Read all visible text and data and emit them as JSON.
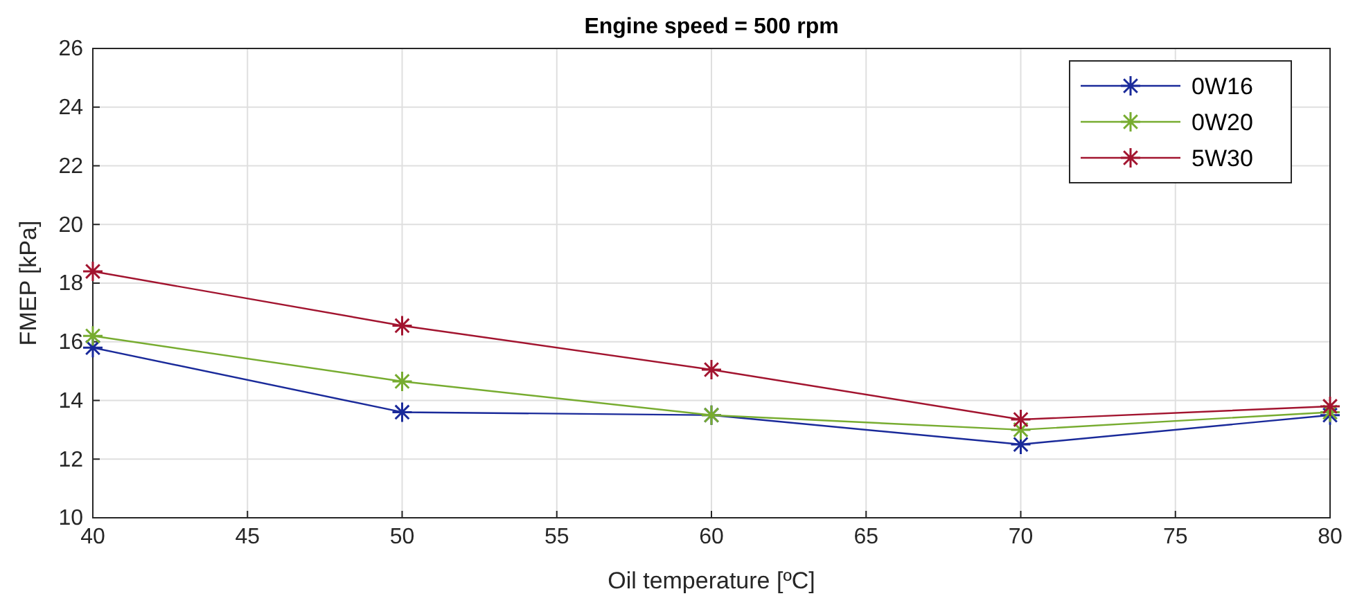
{
  "chart_data": {
    "type": "line",
    "title": "Engine speed = 500 rpm",
    "xlabel": "Oil temperature [ºC]",
    "ylabel": "FMEP [kPa]",
    "x": [
      40,
      50,
      60,
      70,
      80
    ],
    "series": [
      {
        "name": "0W16",
        "color": "#1a2a9a",
        "values": [
          15.8,
          13.6,
          13.5,
          12.5,
          13.5
        ]
      },
      {
        "name": "0W20",
        "color": "#77ac30",
        "values": [
          16.2,
          14.65,
          13.5,
          13.0,
          13.6
        ]
      },
      {
        "name": "5W30",
        "color": "#a2142f",
        "values": [
          18.4,
          16.55,
          15.05,
          13.35,
          13.8
        ]
      }
    ],
    "xlim": [
      40,
      80
    ],
    "xticks": [
      40,
      45,
      50,
      55,
      60,
      65,
      70,
      75,
      80
    ],
    "ylim": [
      10,
      26
    ],
    "yticks": [
      10,
      12,
      14,
      16,
      18,
      20,
      22,
      24,
      26
    ],
    "grid": true,
    "legend": "top right",
    "marker": "cross",
    "line_style": "solid"
  }
}
